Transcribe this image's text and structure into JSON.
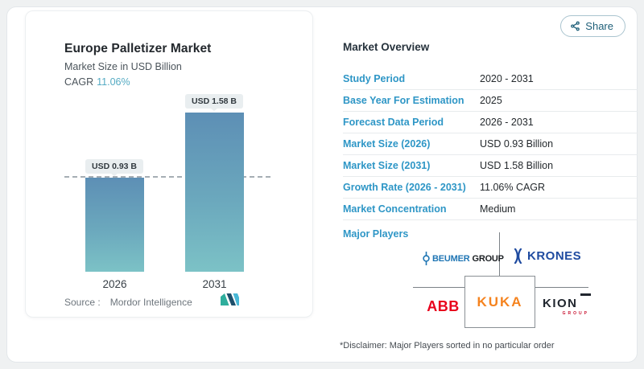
{
  "share": {
    "label": "Share"
  },
  "chart": {
    "title": "Europe Palletizer Market",
    "subtitle": "Market Size in USD Billion",
    "cagr_label": "CAGR",
    "cagr_value": "11.06%",
    "source_label": "Source :",
    "source_name": "Mordor Intelligence"
  },
  "chart_data": {
    "type": "bar",
    "title": "Europe Palletizer Market",
    "ylabel": "Market Size in USD Billion",
    "categories": [
      "2026",
      "2031"
    ],
    "values": [
      0.93,
      1.58
    ],
    "data_labels": [
      "USD 0.93 B",
      "USD 1.58 B"
    ],
    "cagr_percent": 11.06,
    "reference_line_value": 0.93,
    "ylim": [
      0,
      1.75
    ],
    "grid": false,
    "legend": false,
    "bar_gradient_top": "#5d8fb5",
    "bar_gradient_bottom": "#7cc2c6",
    "source": "Mordor Intelligence"
  },
  "overview": {
    "heading": "Market Overview",
    "rows": [
      {
        "label": "Study Period",
        "value": "2020 - 2031"
      },
      {
        "label": "Base Year For Estimation",
        "value": "2025"
      },
      {
        "label": "Forecast Data Period",
        "value": "2026 - 2031"
      },
      {
        "label": "Market Size (2026)",
        "value": "USD 0.93 Billion"
      },
      {
        "label": "Market Size (2031)",
        "value": "USD 1.58 Billion"
      },
      {
        "label": "Growth Rate (2026 - 2031)",
        "value": "11.06% CAGR"
      },
      {
        "label": "Market Concentration",
        "value": "Medium"
      }
    ],
    "major_players_label": "Major Players",
    "logos": {
      "beumer_part1": "BEUMER",
      "beumer_part2": "GROUP",
      "krones": "KRONES",
      "abb": "ABB",
      "kuka": "KUKA",
      "kion": "KION",
      "kion_sub": "GROUP"
    },
    "disclaimer": "*Disclaimer: Major Players sorted in no particular order"
  },
  "colors": {
    "row_label_blue": "#2e96c6",
    "cagr_teal": "#55abc3",
    "share_teal": "#1d5e78",
    "abb_red": "#e8001c",
    "kuka_orange": "#f5831f",
    "krones_blue": "#1f4ba0",
    "beumer_blue": "#2076b4",
    "kion_red": "#c8102e"
  }
}
